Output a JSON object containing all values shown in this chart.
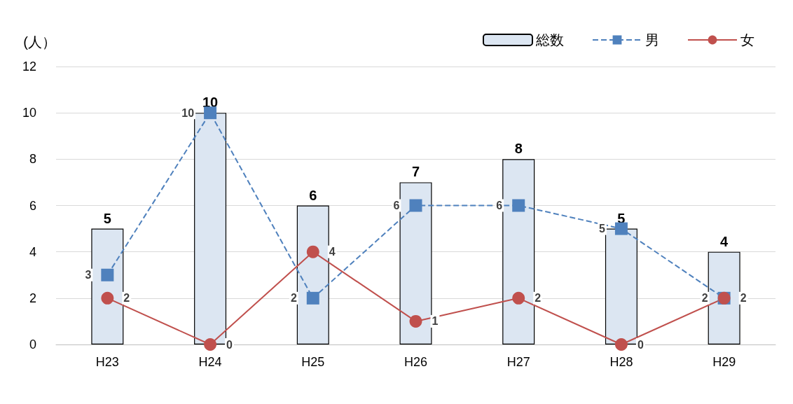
{
  "chart_data": {
    "type": "bar",
    "ylabel": "(人）",
    "categories": [
      "H23",
      "H24",
      "H25",
      "H26",
      "H27",
      "H28",
      "H29"
    ],
    "series": [
      {
        "name": "総数",
        "color": "#dce6f2",
        "values": [
          5,
          10,
          6,
          7,
          8,
          5,
          4
        ]
      },
      {
        "name": "男",
        "type": "line",
        "color": "#4f81bd",
        "marker": "square",
        "line_style": "dashed",
        "values": [
          3,
          10,
          2,
          6,
          6,
          5,
          2
        ]
      },
      {
        "name": "女",
        "type": "line",
        "color": "#c0504d",
        "marker": "circle",
        "line_style": "solid",
        "values": [
          2,
          0,
          4,
          1,
          2,
          0,
          2
        ]
      }
    ],
    "ylim": [
      0,
      12
    ],
    "yticks": [
      0,
      2,
      4,
      6,
      8,
      10,
      12
    ],
    "grid": "y",
    "legend": "top right",
    "data_labels": true
  }
}
